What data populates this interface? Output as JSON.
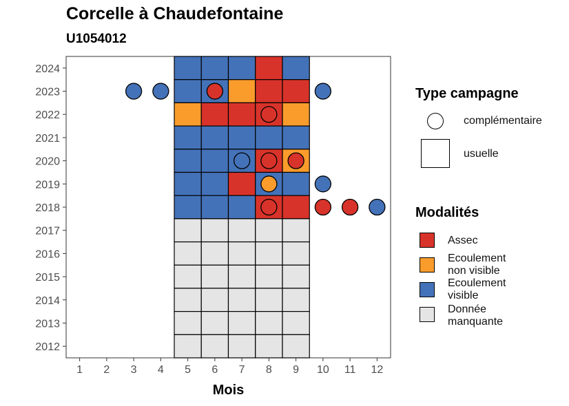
{
  "chart_data": {
    "type": "heatmap",
    "title": "Corcelle à Chaudefontaine",
    "subtitle": "U1054012",
    "xlabel": "Mois",
    "ylabel": "",
    "x_ticks": [
      1,
      2,
      3,
      4,
      5,
      6,
      7,
      8,
      9,
      10,
      11,
      12
    ],
    "y_ticks": [
      2012,
      2013,
      2014,
      2015,
      2016,
      2017,
      2018,
      2019,
      2020,
      2021,
      2022,
      2023,
      2024
    ],
    "xlim": [
      0.5,
      12.5
    ],
    "ylim": [
      2011.5,
      2024.5
    ],
    "colors": {
      "Assec": "#d8332a",
      "Ecoulement non visible": "#f99c2c",
      "Ecoulement visible": "#4472b8",
      "Donnée manquante": "#e5e5e5"
    },
    "legend_type": {
      "title": "Type campagne",
      "items": [
        {
          "label": "complémentaire",
          "shape": "circle"
        },
        {
          "label": "usuelle",
          "shape": "square"
        }
      ]
    },
    "legend_modalites": {
      "title": "Modalités",
      "items": [
        {
          "label_line1": "Assec",
          "label_line2": "",
          "color": "#d8332a"
        },
        {
          "label_line1": "Ecoulement",
          "label_line2": "non visible",
          "color": "#f99c2c"
        },
        {
          "label_line1": "Ecoulement",
          "label_line2": "visible",
          "color": "#4472b8"
        },
        {
          "label_line1": "Donnée",
          "label_line2": "manquante",
          "color": "#e5e5e5"
        }
      ]
    },
    "usuelle": [
      {
        "year": 2024,
        "values": [
          "Ecoulement visible",
          "Ecoulement visible",
          "Ecoulement visible",
          "Assec",
          "Ecoulement visible"
        ]
      },
      {
        "year": 2023,
        "values": [
          "Ecoulement visible",
          "Ecoulement visible",
          "Ecoulement non visible",
          "Assec",
          "Assec"
        ]
      },
      {
        "year": 2022,
        "values": [
          "Ecoulement non visible",
          "Assec",
          "Assec",
          "Assec",
          "Ecoulement non visible"
        ]
      },
      {
        "year": 2021,
        "values": [
          "Ecoulement visible",
          "Ecoulement visible",
          "Ecoulement visible",
          "Ecoulement visible",
          "Ecoulement visible"
        ]
      },
      {
        "year": 2020,
        "values": [
          "Ecoulement visible",
          "Ecoulement visible",
          "Ecoulement visible",
          "Assec",
          "Ecoulement non visible"
        ]
      },
      {
        "year": 2019,
        "values": [
          "Ecoulement visible",
          "Ecoulement visible",
          "Assec",
          "Ecoulement visible",
          "Ecoulement visible"
        ]
      },
      {
        "year": 2018,
        "values": [
          "Ecoulement visible",
          "Ecoulement visible",
          "Ecoulement visible",
          "Assec",
          "Assec"
        ]
      },
      {
        "year": 2017,
        "values": [
          "Donnée manquante",
          "Donnée manquante",
          "Donnée manquante",
          "Donnée manquante",
          "Donnée manquante"
        ]
      },
      {
        "year": 2016,
        "values": [
          "Donnée manquante",
          "Donnée manquante",
          "Donnée manquante",
          "Donnée manquante",
          "Donnée manquante"
        ]
      },
      {
        "year": 2015,
        "values": [
          "Donnée manquante",
          "Donnée manquante",
          "Donnée manquante",
          "Donnée manquante",
          "Donnée manquante"
        ]
      },
      {
        "year": 2014,
        "values": [
          "Donnée manquante",
          "Donnée manquante",
          "Donnée manquante",
          "Donnée manquante",
          "Donnée manquante"
        ]
      },
      {
        "year": 2013,
        "values": [
          "Donnée manquante",
          "Donnée manquante",
          "Donnée manquante",
          "Donnée manquante",
          "Donnée manquante"
        ]
      },
      {
        "year": 2012,
        "values": [
          "Donnée manquante",
          "Donnée manquante",
          "Donnée manquante",
          "Donnée manquante",
          "Donnée manquante"
        ]
      }
    ],
    "usuelle_months": [
      5,
      6,
      7,
      8,
      9
    ],
    "complementaire": [
      {
        "year": 2023,
        "month": 3,
        "value": "Ecoulement visible"
      },
      {
        "year": 2023,
        "month": 4,
        "value": "Ecoulement visible"
      },
      {
        "year": 2023,
        "month": 6,
        "value": "Assec"
      },
      {
        "year": 2023,
        "month": 10,
        "value": "Ecoulement visible"
      },
      {
        "year": 2022,
        "month": 8,
        "value": "Assec"
      },
      {
        "year": 2020,
        "month": 7,
        "value": "Ecoulement visible"
      },
      {
        "year": 2020,
        "month": 8,
        "value": "Assec"
      },
      {
        "year": 2020,
        "month": 9,
        "value": "Assec"
      },
      {
        "year": 2019,
        "month": 8,
        "value": "Ecoulement non visible"
      },
      {
        "year": 2019,
        "month": 10,
        "value": "Ecoulement visible"
      },
      {
        "year": 2018,
        "month": 8,
        "value": "Assec"
      },
      {
        "year": 2018,
        "month": 10,
        "value": "Assec"
      },
      {
        "year": 2018,
        "month": 11,
        "value": "Assec"
      },
      {
        "year": 2018,
        "month": 12,
        "value": "Ecoulement visible"
      }
    ]
  }
}
